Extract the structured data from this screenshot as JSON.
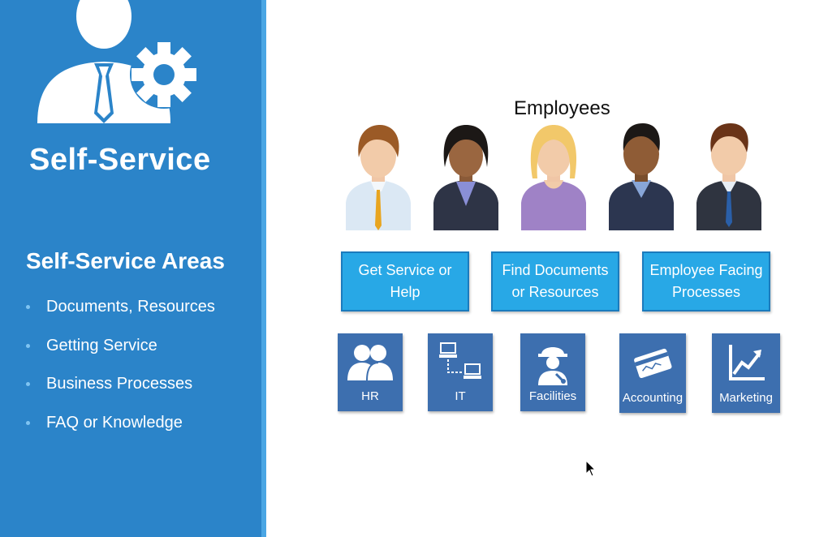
{
  "sidebar": {
    "title": "Self-Service",
    "logo_icon": "person-gear-icon",
    "areas_title": "Self-Service Areas",
    "areas": [
      "Documents, Resources",
      "Getting Service",
      "Business Processes",
      "FAQ or Knowledge"
    ],
    "colors": {
      "background": "#2b84c9",
      "edge": "#4aa6e4"
    }
  },
  "main": {
    "employees_label": "Employees",
    "categories": [
      {
        "line1": "Get Service or",
        "line2": "Help"
      },
      {
        "line1": "Find Documents",
        "line2": "or Resources"
      },
      {
        "line1": "Employee Facing",
        "line2": "Processes"
      }
    ],
    "departments": [
      {
        "label": "HR",
        "icon": "people-icon"
      },
      {
        "label": "IT",
        "icon": "network-icon"
      },
      {
        "label": "Facilities",
        "icon": "worker-icon"
      },
      {
        "label": "Accounting",
        "icon": "credit-card-icon"
      },
      {
        "label": "Marketing",
        "icon": "growth-chart-icon"
      }
    ],
    "colors": {
      "category": "#28a8e6",
      "department": "#3d6faf"
    }
  }
}
